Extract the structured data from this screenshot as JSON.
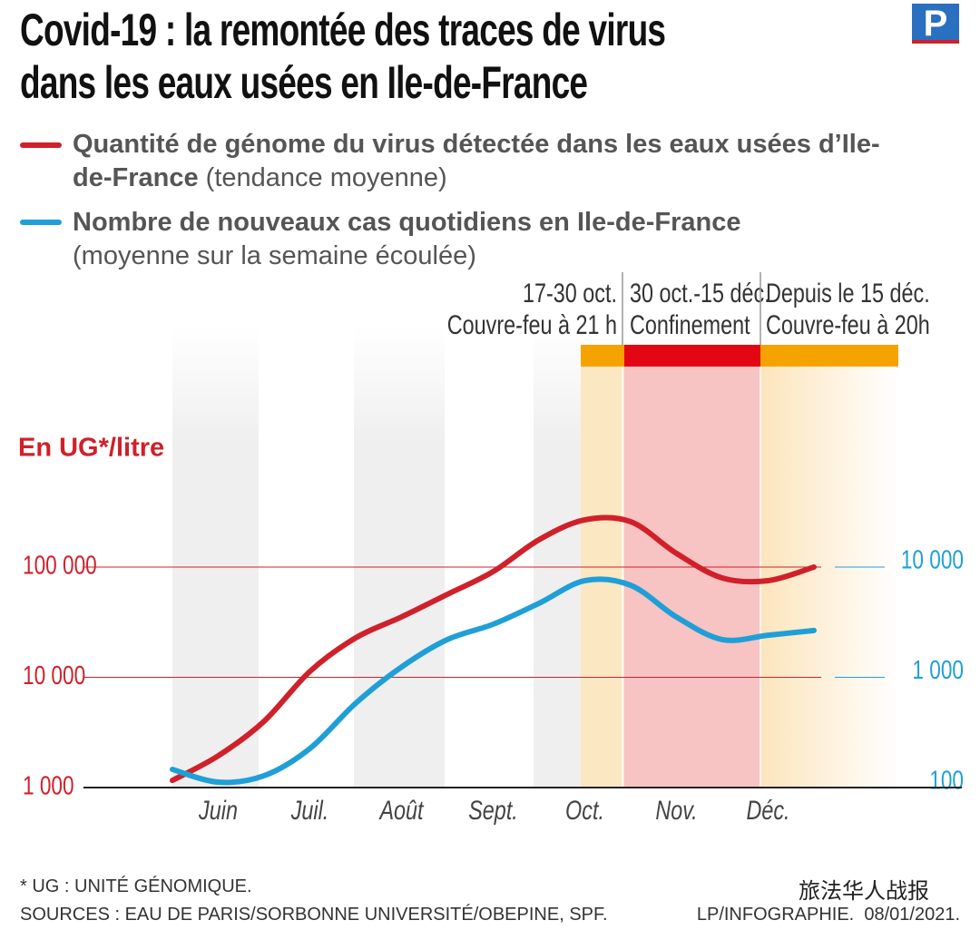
{
  "logo": "P",
  "chart_data": {
    "type": "line",
    "title": [
      "Covid-19 : la remontée des traces de virus",
      "dans les eaux usées en Ile-de-France"
    ],
    "y_label": "En UG*/litre",
    "categories": [
      null,
      "Juin",
      null,
      "Juil.",
      null,
      "Août",
      null,
      "Sept.",
      null,
      "Oct.",
      null,
      "Nov.",
      null,
      "Déc.",
      null
    ],
    "series": [
      {
        "name": "Quantité de génome du virus détectée dans les eaux usées d’Ile-de-France",
        "name_note": "(tendance moyenne)",
        "color": "#d0202a",
        "axis": "y",
        "values": [
          1160,
          1940,
          3990,
          11300,
          22800,
          35300,
          56600,
          91000,
          177000,
          268000,
          258000,
          133000,
          79600,
          75300,
          100000
        ]
      },
      {
        "name": "Nombre de nouveaux cas quotidiens en Ile-de-France",
        "name_note": "(moyenne sur la semaine écoulée)",
        "color": "#1f9fd8",
        "axis": "y2",
        "values": [
          146,
          112,
          128,
          226,
          582,
          1240,
          2200,
          3030,
          4690,
          7530,
          6840,
          3520,
          2200,
          2410,
          2660
        ]
      }
    ],
    "log_scale": true,
    "ylim": [
      1000,
      10000000
    ],
    "yticks": [
      {
        "value": 1000,
        "label": "1 000"
      },
      {
        "value": 10000,
        "label": "10 000"
      },
      {
        "value": 100000,
        "label": "100 000"
      }
    ],
    "y2lim": [
      100,
      1000000
    ],
    "y2ticks": [
      100,
      {
        "value": 1000,
        "label": "1 000"
      },
      {
        "value": 10000,
        "label": "10 000"
      }
    ],
    "grid": true,
    "periods": [
      {
        "dates": "17-30 oct.",
        "measure": "Couvre-feu à 21 h",
        "color": "#f5a300"
      },
      {
        "dates": "30 oct.-15 déc.",
        "measure": "Confinement",
        "color": "#e30613"
      },
      {
        "dates": "Depuis le 15 déc.",
        "measure": "Couvre-feu à 20h",
        "color": "#f5a300"
      }
    ],
    "footnote": "* UG : UNITÉ GÉNOMIQUE.",
    "sources": "SOURCES : EAU DE PARIS/SORBONNE UNIVERSITÉ/OBEPINE, SPF.",
    "credit": "LP/INFOGRAPHIE.  08/01/2021.",
    "watermark": "旅法华人战报"
  }
}
